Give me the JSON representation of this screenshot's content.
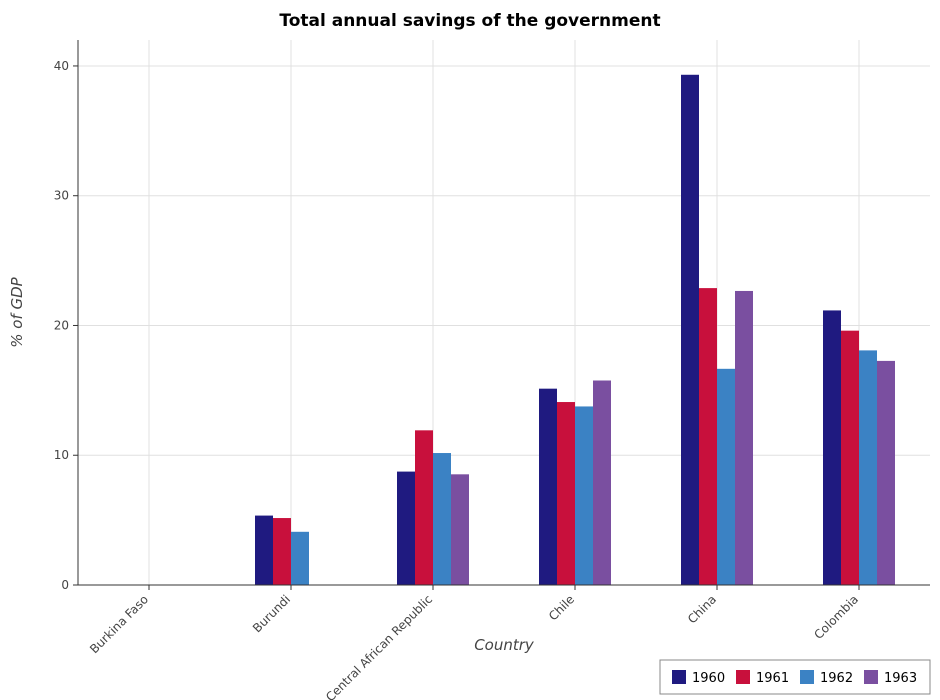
{
  "chart_data": {
    "type": "bar",
    "title": "Total annual savings of the government",
    "xlabel": "Country",
    "ylabel": "% of GDP",
    "categories": [
      "Burkina Faso",
      "Burundi",
      "Central African Republic",
      "Chile",
      "China",
      "Colombia"
    ],
    "series": [
      {
        "name": "1960",
        "color": "#1f1a80",
        "values": [
          0,
          5.35,
          8.74,
          15.13,
          39.32,
          21.16
        ]
      },
      {
        "name": "1961",
        "color": "#c8103c",
        "values": [
          0,
          5.16,
          11.92,
          14.1,
          22.88,
          19.6
        ]
      },
      {
        "name": "1962",
        "color": "#3b82c4",
        "values": [
          0,
          4.1,
          10.17,
          13.76,
          16.66,
          18.08
        ]
      },
      {
        "name": "1963",
        "color": "#7a4fa0",
        "values": [
          0,
          0,
          8.53,
          15.76,
          22.66,
          17.27
        ]
      }
    ],
    "ylim": [
      0,
      42
    ],
    "yticks": [
      0,
      10,
      20,
      30,
      40
    ],
    "grid": true,
    "legend_position": "bottom-right"
  }
}
